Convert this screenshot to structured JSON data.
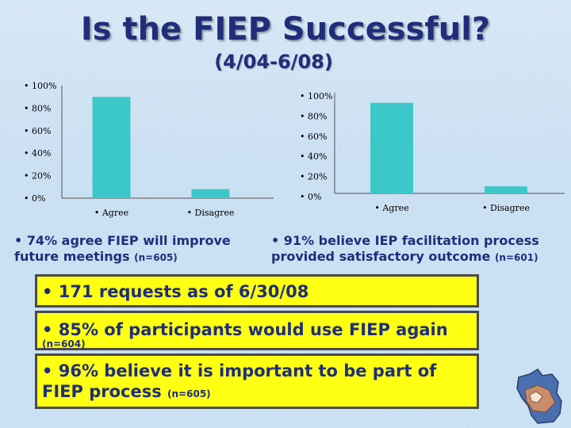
{
  "title": "Is the FIEP Successful?",
  "subtitle": "(4/04-6/08)",
  "chart_data": [
    {
      "type": "bar",
      "categories": [
        "• Agree",
        "• Disagree"
      ],
      "values": [
        90,
        8
      ],
      "ylim": [
        0,
        100
      ],
      "yticks": [
        "• 0%",
        "• 20%",
        "• 40%",
        "• 60%",
        "• 80%",
        "• 100%"
      ],
      "color": "#3cc8c8"
    },
    {
      "type": "bar",
      "categories": [
        "• Agree",
        "• Disagree"
      ],
      "values": [
        90,
        7
      ],
      "ylim": [
        0,
        100
      ],
      "yticks": [
        "• 0%",
        "• 20%",
        "• 40%",
        "• 60%",
        "• 80%",
        "• 100%"
      ],
      "color": "#3cc8c8"
    }
  ],
  "captions": {
    "left_text": "•  74% agree FIEP will improve future meetings",
    "left_n": "(n=605)",
    "right_text": "•  91%  believe IEP facilitation process provided satisfactory outcome",
    "right_n": "(n=601)"
  },
  "boxes": {
    "requests": "• 171 requests as of 6/30/08",
    "reuse": "• 85% of participants would use FIEP again",
    "reuse_n": "(n=604)",
    "important": "• 96% believe it is important to be part of FIEP process",
    "important_n": "(n=605)"
  },
  "colors": {
    "box_fill": "#ffff14",
    "text": "#1f2e7a",
    "bar": "#3cc8c8"
  },
  "logo_icon": "wisconsin-map-icon"
}
